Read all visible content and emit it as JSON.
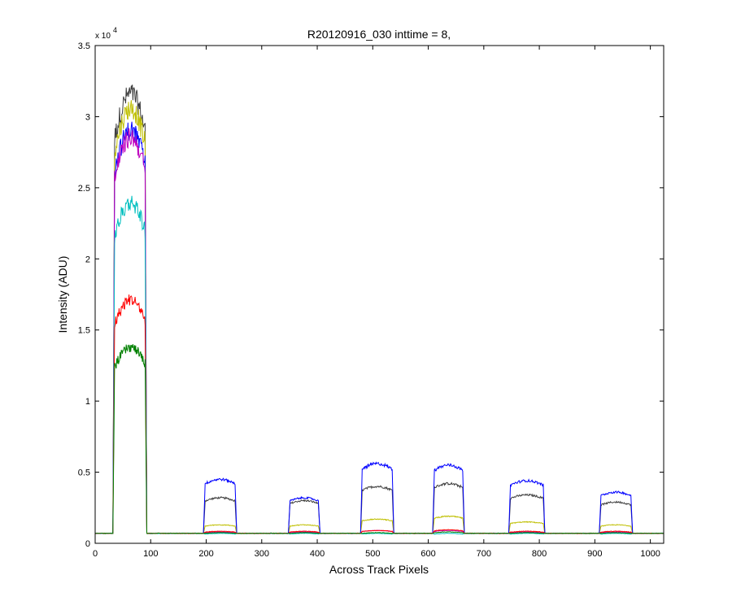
{
  "chart_data": {
    "type": "line",
    "title": "R20120916_030 inttime = 8,",
    "xlabel": "Across Track Pixels",
    "ylabel": "Intensity (ADU)",
    "y_exponent_label": "x 10",
    "y_exponent": "4",
    "xlim": [
      0,
      1024
    ],
    "ylim": [
      0,
      35000
    ],
    "xticks": [
      0,
      100,
      200,
      300,
      400,
      500,
      600,
      700,
      800,
      900,
      1000
    ],
    "yticks": [
      0,
      5000,
      10000,
      15000,
      20000,
      25000,
      30000,
      35000
    ],
    "ytick_labels": [
      "0",
      "0.5",
      "1",
      "1.5",
      "2",
      "2.5",
      "3",
      "3.5"
    ],
    "grid": false,
    "baseline": 700,
    "segments": [
      {
        "x0": 32,
        "x1": 93
      },
      {
        "x0": 195,
        "x1": 255
      },
      {
        "x0": 348,
        "x1": 405
      },
      {
        "x0": 478,
        "x1": 538
      },
      {
        "x0": 608,
        "x1": 665
      },
      {
        "x0": 745,
        "x1": 810
      },
      {
        "x0": 908,
        "x1": 968
      }
    ],
    "series": [
      {
        "color": "#3f3f3f",
        "levels": [
          31000,
          3200,
          3000,
          4000,
          4200,
          3400,
          2900
        ]
      },
      {
        "color": "#bfbf00",
        "levels": [
          30000,
          1300,
          1300,
          1700,
          1900,
          1500,
          1300
        ]
      },
      {
        "color": "#0000ff",
        "levels": [
          28500,
          4500,
          3200,
          5600,
          5500,
          4400,
          3600
        ]
      },
      {
        "color": "#bf00bf",
        "levels": [
          28000,
          800,
          800,
          900,
          900,
          800,
          800
        ]
      },
      {
        "color": "#00bfbf",
        "levels": [
          23500,
          700,
          700,
          700,
          700,
          700,
          700
        ]
      },
      {
        "color": "#ff0000",
        "levels": [
          16800,
          850,
          850,
          900,
          950,
          850,
          850
        ]
      },
      {
        "color": "#008000",
        "levels": [
          13500,
          750,
          750,
          750,
          800,
          750,
          750
        ]
      }
    ]
  }
}
